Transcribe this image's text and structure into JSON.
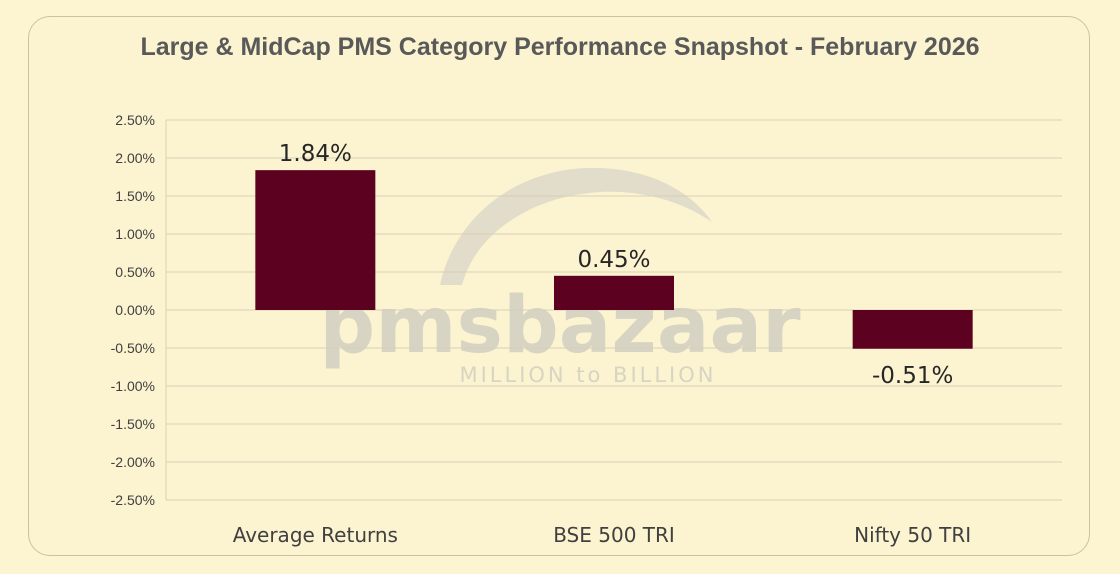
{
  "chart_data": {
    "type": "bar",
    "title": "Large & MidCap PMS Category Performance Snapshot - February 2026",
    "categories": [
      "Average Returns",
      "BSE 500 TRI",
      "Nifty 50 TRI"
    ],
    "values": [
      1.84,
      0.45,
      -0.51
    ],
    "data_labels": [
      "1.84%",
      "0.45%",
      "-0.51%"
    ],
    "ylim": [
      -2.5,
      2.5
    ],
    "y_ticks": [
      2.5,
      2.0,
      1.5,
      1.0,
      0.5,
      0.0,
      -0.5,
      -1.0,
      -1.5,
      -2.0,
      -2.5
    ],
    "y_tick_labels": [
      "2.50%",
      "2.00%",
      "1.50%",
      "1.00%",
      "0.50%",
      "0.00%",
      "-0.50%",
      "-1.00%",
      "-1.50%",
      "-2.00%",
      "-2.50%"
    ],
    "grid": true,
    "bar_color": "#5c0120"
  },
  "watermark": {
    "brand": "pmsbazaar",
    "tagline": "MILLION to BILLION"
  },
  "colors": {
    "background": "#fdf5d2",
    "border": "#c9c1a0",
    "gridline": "#d6d0b8",
    "title": "#595959"
  }
}
